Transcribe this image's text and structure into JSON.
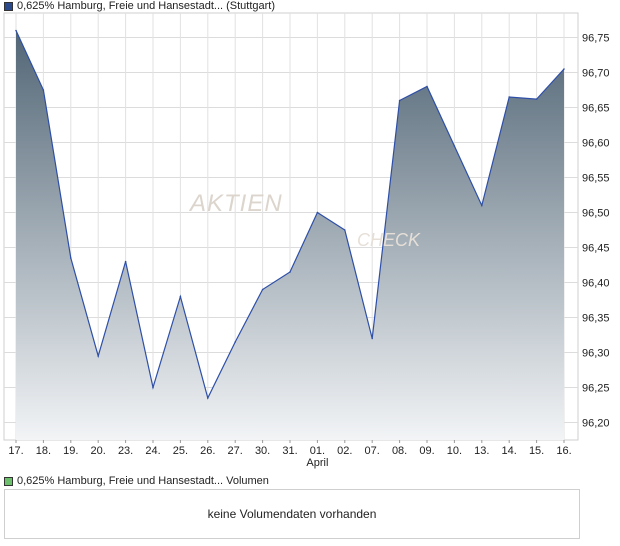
{
  "legend_top": {
    "label": "0,625% Hamburg, Freie und Hansestadt... (Stuttgart)",
    "color": "#2b4a8c"
  },
  "legend_bottom": {
    "label": "0,625% Hamburg, Freie und Hansestadt... Volumen",
    "color": "#6cc06c"
  },
  "watermark": {
    "word1": "AKTIEN",
    "word2": "CHECK"
  },
  "volume": {
    "message": "keine Volumendaten vorhanden"
  },
  "chart_data": {
    "type": "area",
    "categories": [
      "17.",
      "18.",
      "19.",
      "20.",
      "23.",
      "24.",
      "25.",
      "26.",
      "27.",
      "30.",
      "31.",
      "01.",
      "02.",
      "07.",
      "08.",
      "09.",
      "10.",
      "13.",
      "14.",
      "15.",
      "16."
    ],
    "month_label": {
      "category": "01.",
      "text": "April"
    },
    "values": [
      96.76,
      96.675,
      96.435,
      96.295,
      96.43,
      96.25,
      96.38,
      96.235,
      96.315,
      96.39,
      96.415,
      96.5,
      96.475,
      96.32,
      96.66,
      96.68,
      96.595,
      96.51,
      96.665,
      96.662,
      96.705
    ],
    "yticks": [
      "96,20",
      "96,25",
      "96,30",
      "96,35",
      "96,40",
      "96,45",
      "96,50",
      "96,55",
      "96,60",
      "96,65",
      "96,70",
      "96,75"
    ],
    "ylim": [
      96.175,
      96.785
    ],
    "grid": true,
    "line_color": "#2e4fa8",
    "fill_top_color": "#526676",
    "fill_bottom_color": "#f2f4f6"
  }
}
